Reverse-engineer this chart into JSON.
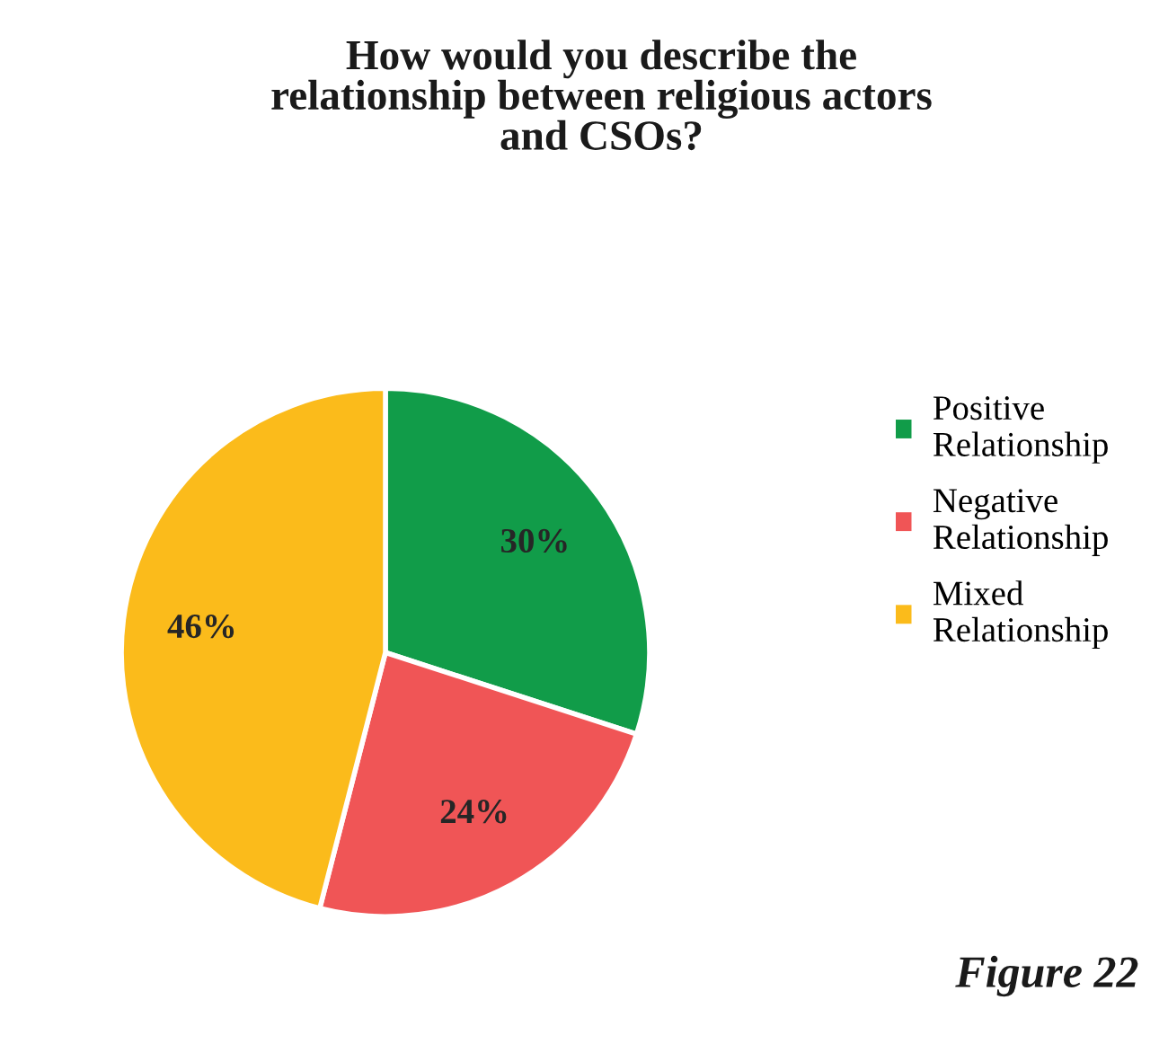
{
  "chart_data": {
    "type": "pie",
    "title": "How would you describe the\nrelationship between religious actors\nand CSOs?",
    "categories": [
      "Positive Relationship",
      "Negative Relationship",
      "Mixed Relationship"
    ],
    "values": [
      30,
      24,
      46
    ],
    "colors": [
      "#119c49",
      "#f05556",
      "#fbbb1b"
    ],
    "value_labels": [
      "30%",
      "24%",
      "46%"
    ],
    "legend": "right",
    "annotations": [
      "Figure 22"
    ]
  }
}
